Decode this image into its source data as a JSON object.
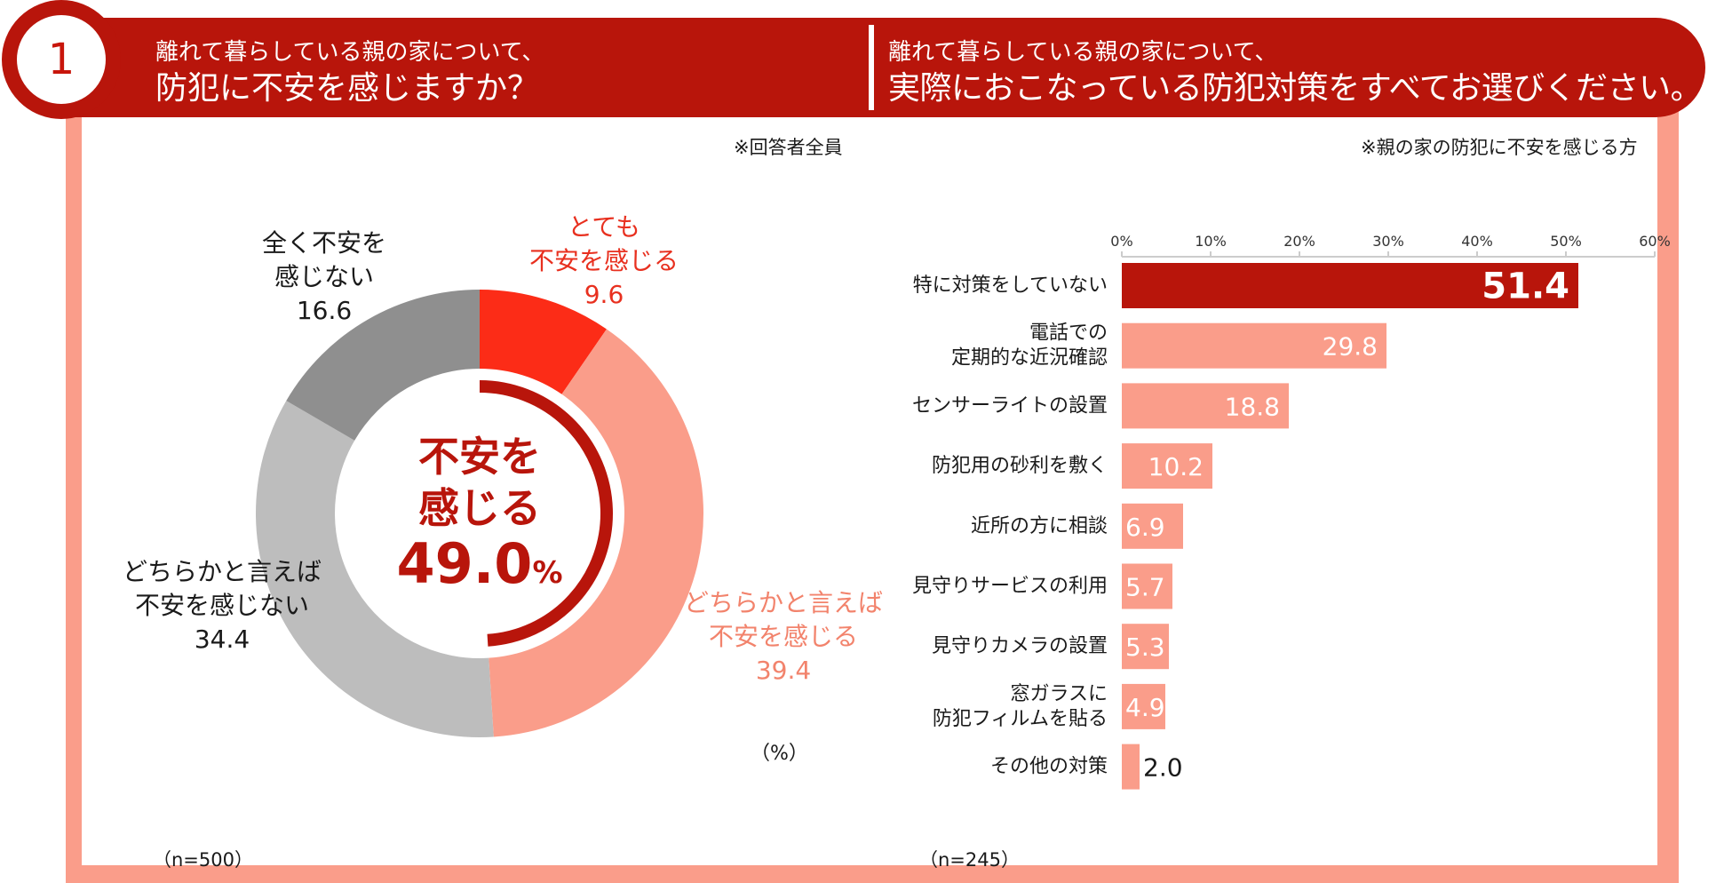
{
  "header": {
    "number": "1",
    "left_question": {
      "line1": "離れて暮らしている親の家について、",
      "line2": "防犯に不安を感じますか？"
    },
    "right_question": {
      "line1": "離れて暮らしている親の家について、",
      "line2": "実際におこなっている防犯対策をすべてお選びください。"
    }
  },
  "notes": {
    "left_scope": "※回答者全員",
    "right_scope": "※親の家の防犯に不安を感じる方",
    "percent_unit": "（%）",
    "left_n": "（n=500）",
    "right_n": "（n=245）"
  },
  "donut": {
    "center_line1": "不安を",
    "center_line2": "感じる",
    "center_value": "49.0",
    "center_unit": "%",
    "labels": [
      {
        "line1": "とても",
        "line2": "不安を感じる",
        "value": "9.6"
      },
      {
        "line1": "どちらかと言えば",
        "line2": "不安を感じる",
        "value": "39.4"
      },
      {
        "line1": "どちらかと言えば",
        "line2": "不安を感じない",
        "value": "34.4"
      },
      {
        "line1": "全く不安を",
        "line2": "感じない",
        "value": "16.6"
      }
    ]
  },
  "colors": {
    "dark_red": "#b8150b",
    "bright_red": "#fc2c17",
    "salmon": "#fa9d8a",
    "light_gray": "#bdbdbd",
    "dark_gray": "#8f8f8f",
    "grid": "#cccccc"
  },
  "chart_data": [
    {
      "type": "pie",
      "variant": "donut",
      "title": "防犯に不安を感じますか？",
      "categories": [
        "とても不安を感じる",
        "どちらかと言えば不安を感じる",
        "どちらかと言えば不安を感じない",
        "全く不安を感じない"
      ],
      "values": [
        9.6,
        39.4,
        34.4,
        16.6
      ],
      "unit": "%",
      "total_concerned": 49.0,
      "n": 500
    },
    {
      "type": "bar",
      "orientation": "horizontal",
      "title": "実際におこなっている防犯対策をすべてお選びください。",
      "categories": [
        [
          "特に対策をしていない"
        ],
        [
          "電話での",
          "定期的な近況確認"
        ],
        [
          "センサーライトの設置"
        ],
        [
          "防犯用の砂利を敷く"
        ],
        [
          "近所の方に相談"
        ],
        [
          "見守りサービスの利用"
        ],
        [
          "見守りカメラの設置"
        ],
        [
          "窓ガラスに",
          "防犯フィルムを貼る"
        ],
        [
          "その他の対策"
        ]
      ],
      "values": [
        51.4,
        29.8,
        18.8,
        10.2,
        6.9,
        5.7,
        5.3,
        4.9,
        2.0
      ],
      "value_labels": [
        "51.4",
        "29.8",
        "18.8",
        "10.2",
        "6.9",
        "5.7",
        "5.3",
        "4.9",
        "2.0"
      ],
      "xlim": [
        0,
        60
      ],
      "ticks": [
        "0%",
        "10%",
        "20%",
        "30%",
        "40%",
        "50%",
        "60%"
      ],
      "n": 245
    }
  ]
}
